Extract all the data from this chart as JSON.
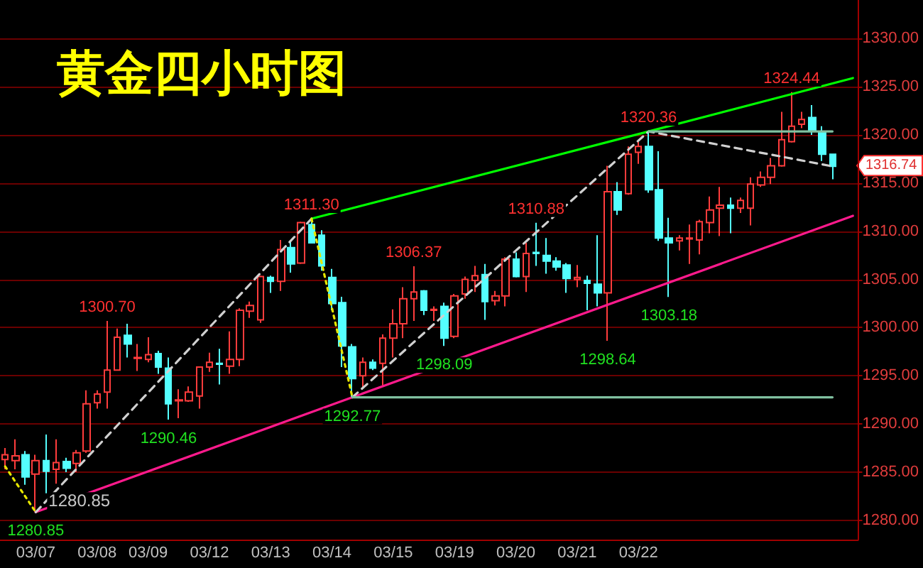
{
  "chart_data": {
    "type": "candlestick",
    "title": "黄金四小时图",
    "categories": [
      null,
      null,
      null,
      "03/07",
      null,
      null,
      null,
      null,
      null,
      "03/08",
      null,
      null,
      null,
      null,
      "03/09",
      null,
      null,
      null,
      null,
      null,
      "03/12",
      null,
      null,
      null,
      null,
      null,
      "03/13",
      null,
      null,
      null,
      null,
      null,
      "03/14",
      null,
      null,
      null,
      null,
      null,
      "03/15",
      null,
      null,
      null,
      null,
      null,
      "03/19",
      null,
      null,
      null,
      null,
      null,
      "03/20",
      null,
      null,
      null,
      null,
      null,
      "03/21",
      null,
      null,
      null,
      null,
      null,
      "03/22",
      null,
      null,
      null,
      null,
      null,
      null,
      null,
      null,
      null,
      null,
      null,
      null,
      null,
      null,
      null,
      null,
      null,
      null,
      null,
      null,
      null
    ],
    "ylim": [
      1278,
      1334
    ],
    "yticks": [
      {
        "value": 1280,
        "label": "1280.00"
      },
      {
        "value": 1285,
        "label": "1285.00"
      },
      {
        "value": 1290,
        "label": "1290.00"
      },
      {
        "value": 1295,
        "label": "1295.00"
      },
      {
        "value": 1300,
        "label": "1300.00"
      },
      {
        "value": 1305,
        "label": "1305.00"
      },
      {
        "value": 1310,
        "label": "1310.00"
      },
      {
        "value": 1315,
        "label": "1315.00"
      },
      {
        "value": 1320,
        "label": "1320.00"
      },
      {
        "value": 1325,
        "label": "1325.00"
      },
      {
        "value": 1330,
        "label": "1330.00"
      }
    ],
    "grid": "y",
    "marker": "none",
    "series": [
      {
        "ohlc": [
          [
            1286.3,
            1287.5,
            1285.3,
            1286.8
          ],
          [
            1286.2,
            1288.4,
            1285.3,
            1286.7
          ],
          [
            1286.8,
            1287.2,
            1283.7,
            1284.5
          ],
          [
            1284.8,
            1286.8,
            1280.85,
            1286.2
          ],
          [
            1286.2,
            1288.9,
            1282.8,
            1285.1
          ],
          [
            1285.3,
            1288.4,
            1283.8,
            1286.0
          ],
          [
            1286.1,
            1286.5,
            1285.0,
            1285.4
          ],
          [
            1285.9,
            1287.3,
            1285.0,
            1287.0
          ],
          [
            1287.2,
            1293.5,
            1287.0,
            1292.1
          ],
          [
            1292.2,
            1293.5,
            1291.6,
            1293.1
          ],
          [
            1293.3,
            1300.7,
            1291.6,
            1295.6
          ],
          [
            1295.6,
            1299.9,
            1295.6,
            1299.0
          ],
          [
            1299.2,
            1300.4,
            1296.9,
            1298.3
          ],
          [
            1296.8,
            1298.3,
            1295.5,
            1296.9
          ],
          [
            1296.7,
            1299.0,
            1296.4,
            1297.2
          ],
          [
            1297.3,
            1297.6,
            1295.2,
            1295.9
          ],
          [
            1295.8,
            1296.9,
            1290.46,
            1292.1
          ],
          [
            1292.4,
            1293.6,
            1290.6,
            1292.5
          ],
          [
            1292.4,
            1293.9,
            1292.3,
            1293.3
          ],
          [
            1292.9,
            1295.9,
            1291.6,
            1295.9
          ],
          [
            1295.9,
            1297.4,
            1295.4,
            1296.4
          ],
          [
            1296.3,
            1297.8,
            1294.1,
            1296.2
          ],
          [
            1296.0,
            1299.6,
            1295.2,
            1296.7
          ],
          [
            1296.7,
            1302.0,
            1296.0,
            1301.8
          ],
          [
            1301.7,
            1302.7,
            1301.0,
            1302.3
          ],
          [
            1300.8,
            1305.4,
            1300.5,
            1305.3
          ],
          [
            1305.2,
            1305.4,
            1303.6,
            1304.8
          ],
          [
            1304.8,
            1309.1,
            1303.8,
            1308.1
          ],
          [
            1308.3,
            1309.0,
            1305.7,
            1306.6
          ],
          [
            1306.7,
            1311.0,
            1306.6,
            1310.9
          ],
          [
            1310.7,
            1311.3,
            1308.8,
            1308.8
          ],
          [
            1309.6,
            1310.1,
            1305.9,
            1306.4
          ],
          [
            1305.2,
            1306.1,
            1301.8,
            1302.5
          ],
          [
            1302.6,
            1303.2,
            1295.9,
            1298.1
          ],
          [
            1298.0,
            1298.3,
            1292.77,
            1294.7
          ],
          [
            1295.0,
            1296.9,
            1293.8,
            1296.4
          ],
          [
            1296.4,
            1296.7,
            1295.6,
            1295.8
          ],
          [
            1296.3,
            1299.3,
            1294.0,
            1298.9
          ],
          [
            1298.9,
            1301.9,
            1296.9,
            1300.4
          ],
          [
            1300.4,
            1304.2,
            1298.9,
            1303.0
          ],
          [
            1303.0,
            1306.37,
            1300.7,
            1303.7
          ],
          [
            1303.8,
            1303.9,
            1301.3,
            1301.8
          ],
          [
            1301.8,
            1302.2,
            1300.7,
            1301.9
          ],
          [
            1302.2,
            1302.6,
            1298.09,
            1298.9
          ],
          [
            1299.1,
            1303.5,
            1298.9,
            1303.3
          ],
          [
            1303.5,
            1305.3,
            1303.0,
            1305.0
          ],
          [
            1304.9,
            1306.4,
            1303.7,
            1305.4
          ],
          [
            1305.5,
            1306.6,
            1300.8,
            1302.7
          ],
          [
            1302.8,
            1303.8,
            1302.3,
            1303.3
          ],
          [
            1303.3,
            1307.3,
            1302.2,
            1307.1
          ],
          [
            1307.1,
            1307.8,
            1305.2,
            1305.3
          ],
          [
            1305.3,
            1308.8,
            1303.7,
            1307.7
          ],
          [
            1307.8,
            1310.88,
            1306.4,
            1307.7
          ],
          [
            1307.5,
            1309.3,
            1305.6,
            1306.9
          ],
          [
            1306.9,
            1307.3,
            1305.9,
            1306.3
          ],
          [
            1306.5,
            1306.7,
            1303.6,
            1305.1
          ],
          [
            1305.0,
            1306.5,
            1304.2,
            1305.2
          ],
          [
            1304.9,
            1305.4,
            1301.8,
            1304.6
          ],
          [
            1304.5,
            1309.6,
            1302.2,
            1303.6
          ],
          [
            1303.6,
            1316.8,
            1298.64,
            1314.1
          ],
          [
            1314.1,
            1315.1,
            1311.7,
            1312.2
          ],
          [
            1313.9,
            1318.8,
            1313.8,
            1318.0
          ],
          [
            1318.2,
            1319.3,
            1317.0,
            1318.8
          ],
          [
            1318.8,
            1320.36,
            1314.0,
            1314.3
          ],
          [
            1314.3,
            1318.3,
            1309.0,
            1309.3
          ],
          [
            1309.3,
            1311.4,
            1303.18,
            1308.8
          ],
          [
            1309.0,
            1309.6,
            1308.0,
            1309.3
          ],
          [
            1309.2,
            1310.7,
            1306.6,
            1309.3
          ],
          [
            1309.1,
            1311.2,
            1307.6,
            1311.0
          ],
          [
            1310.9,
            1313.6,
            1309.8,
            1312.2
          ],
          [
            1312.4,
            1314.6,
            1309.5,
            1312.7
          ],
          [
            1312.7,
            1313.5,
            1309.8,
            1312.4
          ],
          [
            1312.4,
            1313.5,
            1311.9,
            1313.2
          ],
          [
            1312.4,
            1315.6,
            1310.6,
            1314.9
          ],
          [
            1314.8,
            1316.2,
            1314.6,
            1315.6
          ],
          [
            1315.6,
            1317.6,
            1314.9,
            1316.8
          ],
          [
            1316.8,
            1322.4,
            1316.7,
            1319.5
          ],
          [
            1319.3,
            1324.44,
            1319.2,
            1320.9
          ],
          [
            1321.1,
            1322.4,
            1320.7,
            1321.6
          ],
          [
            1321.8,
            1323.1,
            1320.0,
            1320.4
          ],
          [
            1320.3,
            1320.9,
            1317.3,
            1318.0
          ],
          [
            1318.0,
            1318.0,
            1315.4,
            1316.74
          ],
          null,
          null
        ]
      },
      {
        "type": "line",
        "color": "#00ff00",
        "line_style": "solid",
        "values": [
          null,
          null,
          null,
          null,
          null,
          null,
          null,
          null,
          null,
          null,
          null,
          null,
          null,
          null,
          null,
          null,
          null,
          null,
          null,
          null,
          null,
          null,
          null,
          null,
          null,
          null,
          null,
          null,
          null,
          null,
          1311.3,
          null,
          null,
          null,
          null,
          null,
          null,
          null,
          null,
          null,
          null,
          null,
          null,
          null,
          null,
          null,
          null,
          null,
          null,
          null,
          null,
          null,
          null,
          null,
          null,
          null,
          null,
          null,
          null,
          null,
          null,
          null,
          null,
          1320.36,
          null,
          null,
          null,
          null,
          null,
          null,
          null,
          null,
          null,
          null,
          null,
          null,
          null,
          null,
          null,
          null,
          null,
          null,
          null,
          1325.9
        ]
      },
      {
        "type": "line",
        "color": "#ff1a8c",
        "line_style": "solid",
        "values": [
          null,
          null,
          null,
          1280.85,
          null,
          null,
          null,
          null,
          null,
          null,
          null,
          null,
          null,
          null,
          null,
          null,
          null,
          null,
          null,
          null,
          null,
          null,
          null,
          null,
          null,
          null,
          null,
          null,
          null,
          null,
          null,
          null,
          null,
          null,
          1292.77,
          null,
          null,
          null,
          null,
          null,
          null,
          null,
          null,
          null,
          null,
          null,
          null,
          null,
          null,
          null,
          null,
          null,
          null,
          null,
          null,
          null,
          null,
          null,
          null,
          null,
          null,
          null,
          null,
          null,
          null,
          null,
          null,
          null,
          null,
          null,
          null,
          null,
          null,
          null,
          null,
          null,
          null,
          null,
          null,
          null,
          null,
          null,
          null,
          1311.6
        ]
      },
      {
        "type": "line",
        "color": "#d0d0d0",
        "line_style": "dashed",
        "values": [
          null,
          null,
          null,
          1280.85,
          null,
          null,
          null,
          null,
          null,
          null,
          null,
          null,
          null,
          null,
          null,
          null,
          null,
          null,
          null,
          null,
          null,
          null,
          null,
          null,
          null,
          null,
          null,
          null,
          null,
          null,
          1311.3,
          null,
          null,
          null,
          null,
          null,
          null,
          null,
          null,
          null,
          null,
          null,
          null,
          null,
          null,
          null,
          null,
          null,
          null,
          null,
          null,
          null,
          null,
          null,
          null,
          null,
          null,
          null,
          null,
          null,
          null,
          null,
          null,
          null,
          null,
          null,
          null,
          null,
          null,
          null,
          null,
          null,
          null,
          null,
          null,
          null,
          null,
          null,
          null,
          null,
          null,
          null,
          null,
          null
        ]
      },
      {
        "type": "line",
        "color": "#d0d0d0",
        "line_style": "dashed",
        "values": [
          null,
          null,
          null,
          null,
          null,
          null,
          null,
          null,
          null,
          null,
          null,
          null,
          null,
          null,
          null,
          null,
          null,
          null,
          null,
          null,
          null,
          null,
          null,
          null,
          null,
          null,
          null,
          null,
          null,
          null,
          null,
          null,
          null,
          null,
          1292.77,
          null,
          null,
          null,
          null,
          null,
          null,
          null,
          null,
          null,
          null,
          null,
          null,
          null,
          null,
          null,
          null,
          null,
          null,
          null,
          null,
          null,
          null,
          null,
          null,
          null,
          null,
          null,
          null,
          1320.36,
          null,
          null,
          null,
          null,
          null,
          null,
          null,
          null,
          null,
          null,
          null,
          null,
          null,
          null,
          null,
          null,
          null,
          1316.74,
          null,
          null
        ]
      },
      {
        "type": "line",
        "color": "#e6e600",
        "line_style": "dotted",
        "values": [
          1285.6,
          null,
          null,
          1280.85,
          null,
          null,
          null,
          null,
          null,
          null,
          null,
          null,
          null,
          null,
          null,
          null,
          null,
          null,
          null,
          null,
          null,
          null,
          null,
          null,
          null,
          null,
          null,
          null,
          null,
          null,
          null,
          null,
          null,
          null,
          null,
          null,
          null,
          null,
          null,
          null,
          null,
          null,
          null,
          null,
          null,
          null,
          null,
          null,
          null,
          null,
          null,
          null,
          null,
          null,
          null,
          null,
          null,
          null,
          null,
          null,
          null,
          null,
          null,
          null,
          null,
          null,
          null,
          null,
          null,
          null,
          null,
          null,
          null,
          null,
          null,
          null,
          null,
          null,
          null,
          null,
          null,
          null,
          null,
          null
        ]
      },
      {
        "type": "line",
        "color": "#e6e600",
        "line_style": "dotted",
        "values": [
          null,
          null,
          null,
          null,
          null,
          null,
          null,
          null,
          null,
          null,
          null,
          null,
          null,
          null,
          null,
          null,
          null,
          null,
          null,
          null,
          null,
          null,
          null,
          null,
          null,
          null,
          null,
          null,
          null,
          null,
          1311.3,
          null,
          null,
          null,
          1292.77,
          null,
          null,
          null,
          null,
          null,
          null,
          null,
          null,
          null,
          null,
          null,
          null,
          null,
          null,
          null,
          null,
          null,
          null,
          null,
          null,
          null,
          null,
          null,
          null,
          null,
          null,
          null,
          null,
          null,
          null,
          null,
          null,
          null,
          null,
          null,
          null,
          null,
          null,
          null,
          null,
          null,
          null,
          null,
          null,
          null,
          null,
          null,
          null,
          null
        ]
      },
      {
        "type": "line",
        "color": "#80c0a0",
        "line_style": "solid",
        "values": [
          null,
          null,
          null,
          null,
          null,
          null,
          null,
          null,
          null,
          null,
          null,
          null,
          null,
          null,
          null,
          null,
          null,
          null,
          null,
          null,
          null,
          null,
          null,
          null,
          null,
          null,
          null,
          null,
          null,
          null,
          null,
          null,
          null,
          null,
          1292.77,
          null,
          null,
          null,
          null,
          null,
          null,
          null,
          null,
          null,
          null,
          null,
          null,
          null,
          null,
          null,
          null,
          null,
          null,
          null,
          null,
          null,
          null,
          null,
          null,
          null,
          null,
          null,
          null,
          null,
          null,
          null,
          null,
          null,
          null,
          null,
          null,
          null,
          null,
          null,
          null,
          null,
          null,
          null,
          null,
          null,
          null,
          1292.77,
          null,
          null
        ]
      },
      {
        "type": "line",
        "color": "#80c0a0",
        "line_style": "solid",
        "values": [
          null,
          null,
          null,
          null,
          null,
          null,
          null,
          null,
          null,
          null,
          null,
          null,
          null,
          null,
          null,
          null,
          null,
          null,
          null,
          null,
          null,
          null,
          null,
          null,
          null,
          null,
          null,
          null,
          null,
          null,
          null,
          null,
          null,
          null,
          null,
          null,
          null,
          null,
          null,
          null,
          null,
          null,
          null,
          null,
          null,
          null,
          null,
          null,
          null,
          null,
          null,
          null,
          null,
          null,
          null,
          null,
          null,
          null,
          null,
          null,
          null,
          null,
          null,
          1320.36,
          null,
          null,
          null,
          null,
          null,
          null,
          null,
          null,
          null,
          null,
          null,
          null,
          null,
          null,
          null,
          null,
          null,
          1320.36,
          null,
          null
        ]
      }
    ],
    "annotations": [
      {
        "text": "1300.70",
        "y": 1300.7
      },
      {
        "text": "1290.46",
        "y": 1290.46
      },
      {
        "text": "1311.30",
        "y": 1311.3
      },
      {
        "text": "1306.37",
        "y": 1306.37
      },
      {
        "text": "1292.77",
        "y": 1292.77
      },
      {
        "text": "1298.09",
        "y": 1298.09
      },
      {
        "text": "1310.88",
        "y": 1310.88
      },
      {
        "text": "1298.64",
        "y": 1298.64
      },
      {
        "text": "1320.36",
        "y": 1320.36
      },
      {
        "text": "1303.18",
        "y": 1303.18
      },
      {
        "text": "1324.44",
        "y": 1324.44
      },
      "1280.85",
      "1280.85",
      "1316.74"
    ]
  }
}
